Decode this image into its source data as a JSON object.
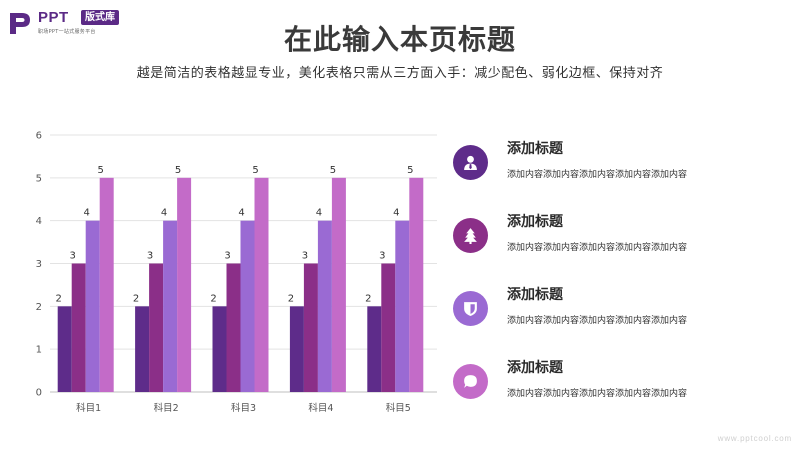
{
  "logo": {
    "brand": "PPT",
    "badge": "版式库",
    "tagline": "职场PPT一站式服务平台",
    "color": "#5b2a86"
  },
  "header": {
    "title": "在此输入本页标题",
    "subtitle": "越是简洁的表格越显专业，美化表格只需从三方面入手：减少配色、弱化边框、保持对齐"
  },
  "chart_data": {
    "type": "bar",
    "categories": [
      "科目1",
      "科目2",
      "科目3",
      "科目4",
      "科目5"
    ],
    "series": [
      {
        "values": [
          2,
          2,
          2,
          2,
          2
        ],
        "color": "#5e2c8a"
      },
      {
        "values": [
          3,
          3,
          3,
          3,
          3
        ],
        "color": "#8b2f88"
      },
      {
        "values": [
          4,
          4,
          4,
          4,
          4
        ],
        "color": "#9a6ad3"
      },
      {
        "values": [
          5,
          5,
          5,
          5,
          5
        ],
        "color": "#c36bc8"
      }
    ],
    "y_ticks": [
      0,
      1,
      2,
      3,
      4,
      5,
      6
    ],
    "ylim": [
      0,
      6
    ],
    "grid": true,
    "data_labels": true
  },
  "items": [
    {
      "title": "添加标题",
      "desc": "添加内容添加内容添加内容添加内容添加内容",
      "icon": "user-icon",
      "color": "#5e2c8a"
    },
    {
      "title": "添加标题",
      "desc": "添加内容添加内容添加内容添加内容添加内容",
      "icon": "tree-icon",
      "color": "#8b2f88"
    },
    {
      "title": "添加标题",
      "desc": "添加内容添加内容添加内容添加内容添加内容",
      "icon": "shield-icon",
      "color": "#9a6ad3"
    },
    {
      "title": "添加标题",
      "desc": "添加内容添加内容添加内容添加内容添加内容",
      "icon": "chat-bubble-icon",
      "color": "#c36bc8"
    }
  ],
  "watermark": "www.pptcool.com"
}
